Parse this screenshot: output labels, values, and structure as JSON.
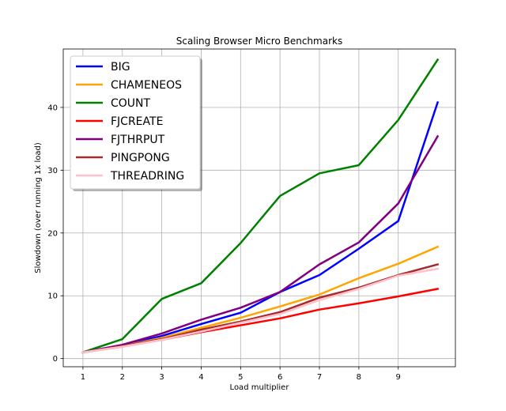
{
  "chart_data": {
    "type": "line",
    "title": "Scaling Browser Micro Benchmarks",
    "xlabel": "Load multiplier",
    "ylabel": "Slowdown (over running 1x load)",
    "x": [
      1,
      2,
      3,
      4,
      5,
      6,
      7,
      8,
      9,
      10
    ],
    "xticks": [
      1,
      2,
      3,
      4,
      5,
      6,
      7,
      8,
      9
    ],
    "yticks": [
      0,
      10,
      20,
      30,
      40
    ],
    "xlim": [
      0.5,
      10.45
    ],
    "ylim": [
      -1.3,
      49.3
    ],
    "grid": true,
    "legend_position": "top-left",
    "series": [
      {
        "name": "BIG",
        "color": "#0000ff",
        "values": [
          1.0,
          2.1,
          3.6,
          5.5,
          7.3,
          10.6,
          13.3,
          17.5,
          21.9,
          40.8
        ]
      },
      {
        "name": "CHAMENEOS",
        "color": "#ffa500",
        "values": [
          1.0,
          2.0,
          3.3,
          4.9,
          6.5,
          8.3,
          10.2,
          12.8,
          15.1,
          17.8
        ]
      },
      {
        "name": "COUNT",
        "color": "#008000",
        "values": [
          1.0,
          3.1,
          9.5,
          12.0,
          18.4,
          25.9,
          29.5,
          30.8,
          38.0,
          47.6
        ]
      },
      {
        "name": "FJCREATE",
        "color": "#ff0000",
        "values": [
          1.0,
          1.9,
          3.0,
          4.2,
          5.3,
          6.4,
          7.8,
          8.8,
          9.9,
          11.1
        ]
      },
      {
        "name": "FJTHRPUT",
        "color": "#800080",
        "values": [
          1.0,
          2.2,
          4.0,
          6.2,
          8.1,
          10.6,
          15.0,
          18.5,
          24.7,
          35.4
        ]
      },
      {
        "name": "PINGPONG",
        "color": "#a52a2a",
        "values": [
          1.0,
          2.0,
          3.1,
          4.6,
          5.9,
          7.4,
          9.7,
          11.3,
          13.3,
          15.0
        ]
      },
      {
        "name": "THREADRING",
        "color": "#ffc0cb",
        "values": [
          1.0,
          1.9,
          3.0,
          4.3,
          5.7,
          7.1,
          9.3,
          11.1,
          13.2,
          14.3
        ]
      }
    ]
  }
}
